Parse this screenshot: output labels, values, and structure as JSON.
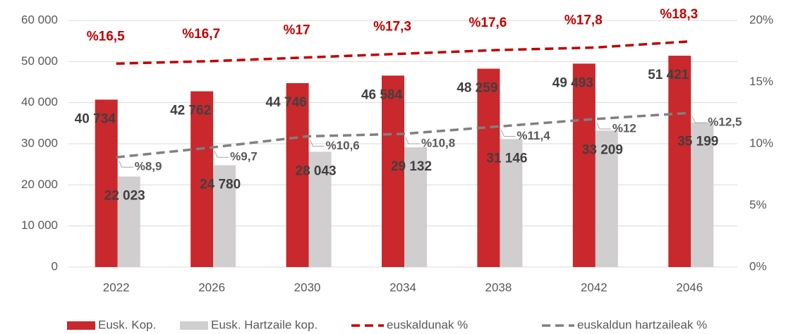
{
  "chart_data": {
    "type": "bar",
    "categories": [
      "2022",
      "2026",
      "2030",
      "2034",
      "2038",
      "2042",
      "2046"
    ],
    "series": [
      {
        "name": "Eusk. Kop.",
        "type": "bar",
        "color": "#c9282d",
        "values": [
          40734,
          42762,
          44746,
          46584,
          48259,
          49493,
          51421
        ],
        "value_labels": [
          "40 734",
          "42 762",
          "44 746",
          "46 584",
          "48 259",
          "49 493",
          "51 421"
        ]
      },
      {
        "name": "Eusk. Hartzaile kop.",
        "type": "bar",
        "color": "#d0cece",
        "values": [
          22023,
          24780,
          28043,
          29132,
          31146,
          33209,
          35199
        ],
        "value_labels": [
          "22 023",
          "24 780",
          "28 043",
          "29 132",
          "31 146",
          "33 209",
          "35 199"
        ]
      },
      {
        "name": "euskaldunak %",
        "type": "line",
        "axis": "y2",
        "color": "#c00000",
        "dashed": true,
        "values": [
          16.5,
          16.7,
          17,
          17.3,
          17.6,
          17.8,
          18.3
        ],
        "value_labels": [
          "%16,5",
          "%16,7",
          "%17",
          "%17,3",
          "%17,6",
          "%17,8",
          "%18,3"
        ]
      },
      {
        "name": "euskaldun hartzaileak %",
        "type": "line",
        "axis": "y2",
        "color": "#808080",
        "dashed": true,
        "values": [
          8.9,
          9.7,
          10.6,
          10.8,
          11.4,
          12,
          12.5
        ],
        "value_labels": [
          "%8,9",
          "%9,7",
          "%10,6",
          "%10,8",
          "%11,4",
          "%12",
          "%12,5"
        ]
      }
    ],
    "ylim": [
      0,
      60000
    ],
    "yticks": [
      0,
      {
        "value": 10000,
        "label": "10 000"
      },
      {
        "value": 20000,
        "label": "20 000"
      },
      {
        "value": 30000,
        "label": "30 000"
      },
      {
        "value": 40000,
        "label": "40 000"
      },
      {
        "value": 50000,
        "label": "50 000"
      },
      {
        "value": 60000,
        "label": "60 000"
      }
    ],
    "y2lim": [
      0,
      20
    ],
    "y2ticks": [
      {
        "value": 0,
        "label": "0%"
      },
      {
        "value": 5,
        "label": "5%"
      },
      {
        "value": 10,
        "label": "10%"
      },
      {
        "value": 15,
        "label": "15%"
      },
      {
        "value": 20,
        "label": "20%"
      }
    ],
    "grid": true,
    "legend": "bottom"
  }
}
